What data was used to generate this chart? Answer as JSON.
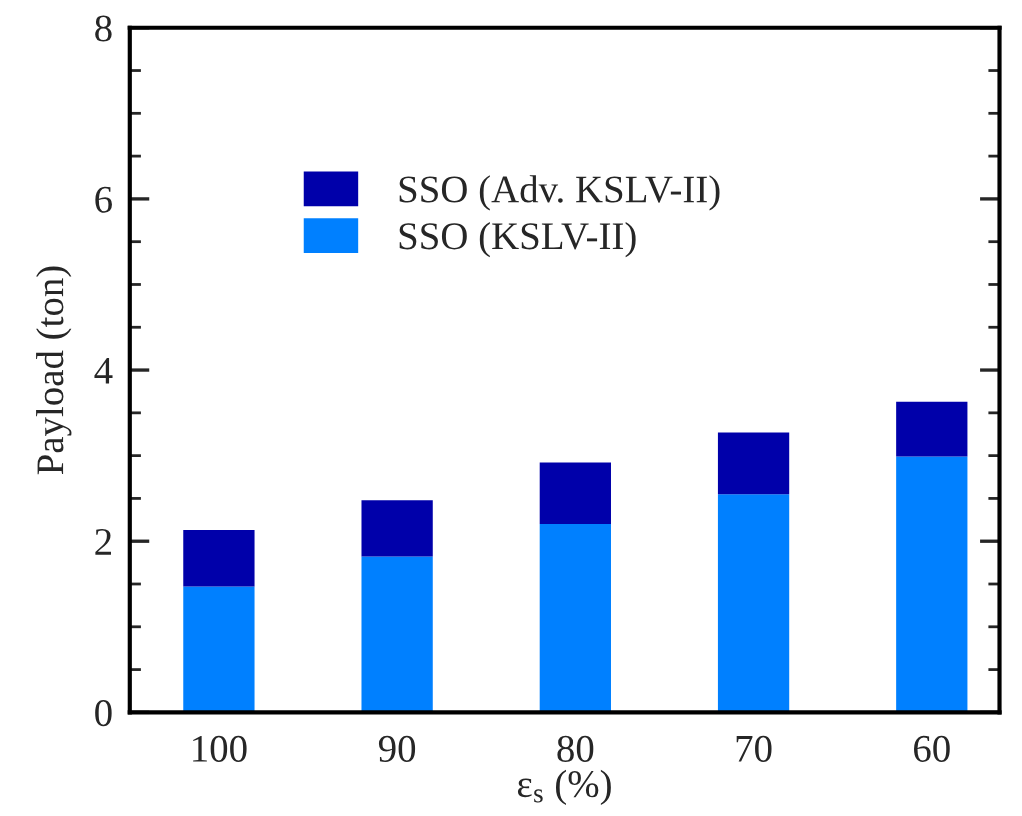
{
  "chart_data": {
    "type": "bar",
    "stacked": true,
    "categories": [
      "100",
      "90",
      "80",
      "70",
      "60"
    ],
    "series": [
      {
        "name": "SSO (KSLV-II)",
        "color": "#0080ff",
        "values": [
          1.47,
          1.82,
          2.2,
          2.55,
          2.99
        ]
      },
      {
        "name": "SSO (Adv. KSLV-II)",
        "color": "#0000aa",
        "values": [
          0.66,
          0.66,
          0.72,
          0.72,
          0.64
        ]
      }
    ],
    "xlabel": "ε$_{s}$ (%)",
    "ylabel": "Payload (ton)",
    "ylim": [
      0,
      8
    ],
    "yticks": [
      0,
      {
        "value": 0.5,
        "label": null
      },
      {
        "value": 1,
        "label": null
      },
      {
        "value": 1.5,
        "label": null
      },
      2,
      {
        "value": 2.5,
        "label": null
      },
      {
        "value": 3,
        "label": null
      },
      {
        "value": 3.5,
        "label": null
      },
      4,
      {
        "value": 4.5,
        "label": null
      },
      {
        "value": 5,
        "label": null
      },
      {
        "value": 5.5,
        "label": null
      },
      6,
      {
        "value": 6.5,
        "label": null
      },
      {
        "value": 7,
        "label": null
      },
      {
        "value": 7.5,
        "label": null
      },
      8
    ],
    "legend": "top left",
    "grid": false
  }
}
